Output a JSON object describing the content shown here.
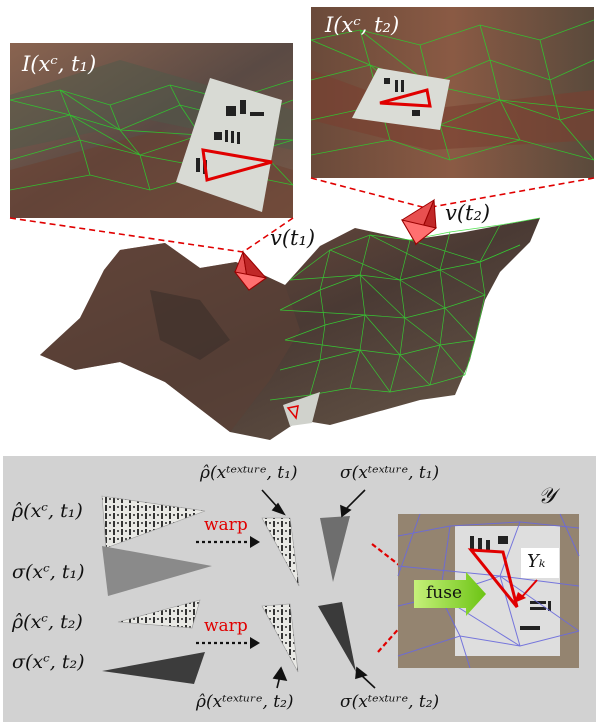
{
  "top": {
    "view1_label": "I(xᶜ, t₁)",
    "view2_label": "I(xᶜ, t₂)",
    "camera1_label": "v(t₁)",
    "camera2_label": "v(t₂)"
  },
  "bottom": {
    "rho_c_t1": "ρ̂(xᶜ, t₁)",
    "sigma_c_t1": "σ(xᶜ, t₁)",
    "rho_c_t2": "ρ̂(xᶜ, t₂)",
    "sigma_c_t2": "σ(xᶜ, t₂)",
    "rho_tex_t1": "ρ̂(xᵗᵉˣᵗᵘʳᵉ, t₁)",
    "sigma_tex_t1": "σ(xᵗᵉˣᵗᵘʳᵉ, t₁)",
    "rho_tex_t2": "ρ̂(xᵗᵉˣᵗᵘʳᵉ, t₂)",
    "sigma_tex_t2": "σ(xᵗᵉˣᵗᵘʳᵉ, t₂)",
    "warp_1": "warp",
    "warp_2": "warp",
    "fuse": "fuse",
    "output_label": "𝒴",
    "yk_label": "Yₖ"
  },
  "colors": {
    "panel_bg": "#d2d2d2",
    "highlight_red": "#e00000",
    "mesh_green": "#22cc22",
    "fuse_green": "#8edc1c",
    "terrain_brown": "#6e4a36"
  }
}
